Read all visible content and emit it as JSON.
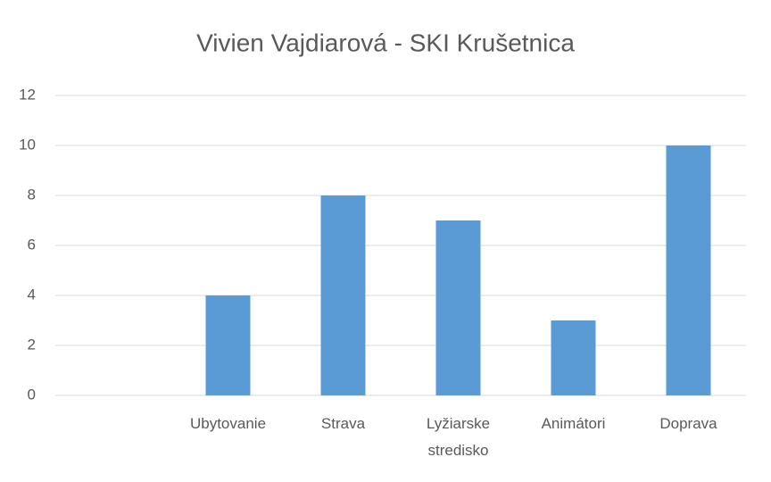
{
  "chart_data": {
    "type": "bar",
    "title": "Vivien Vajdiarová - SKI Krušetnica",
    "categories": [
      null,
      "Ubytovanie",
      "Strava",
      "Lyžiarske stredisko",
      "Animátori",
      "Doprava"
    ],
    "values": [
      null,
      4,
      8,
      7,
      3,
      10
    ],
    "color": "#5b9bd5",
    "ylim": [
      0,
      12
    ],
    "yticks": [
      0,
      2,
      4,
      6,
      8,
      10,
      12
    ],
    "grid": true
  }
}
